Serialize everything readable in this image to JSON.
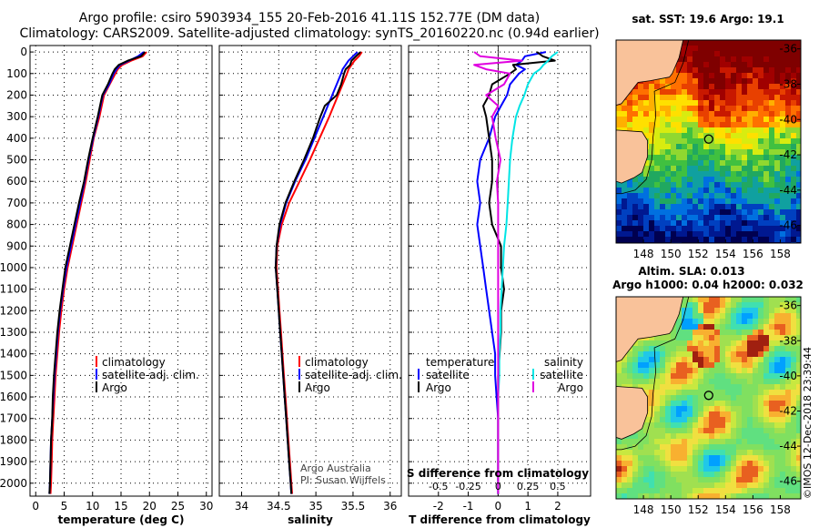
{
  "header": {
    "line1": "Argo profile: csiro 5903934_155 20-Feb-2016 41.11S 152.77E (DM data)",
    "line2": "Climatology: CARS2009. Satellite-adjusted climatology: synTS_20160220.nc (0.94d earlier)"
  },
  "colors": {
    "climatology": "#ff0000",
    "satellite": "#0000ff",
    "argo": "#000000",
    "sat_salinity": "#00e5e5",
    "argo_salinity": "#e000e0",
    "land": "#f9c29a"
  },
  "chart_data": [
    {
      "type": "line",
      "id": "temperature",
      "xlabel": "temperature (deg C)",
      "ylabel": "",
      "xlim": [
        -1,
        31
      ],
      "ylim": [
        2060,
        -30
      ],
      "xticks": [
        0,
        5,
        10,
        15,
        20,
        25,
        30
      ],
      "yticks": [
        0,
        100,
        200,
        300,
        400,
        500,
        600,
        700,
        800,
        900,
        1000,
        1100,
        1200,
        1300,
        1400,
        1500,
        1600,
        1700,
        1800,
        1900,
        2000
      ],
      "legend": [
        "climatology",
        "satellite-adj. clim.",
        "Argo"
      ],
      "depth": [
        0,
        20,
        40,
        60,
        80,
        100,
        150,
        200,
        250,
        300,
        400,
        500,
        600,
        700,
        800,
        900,
        1000,
        1100,
        1200,
        1300,
        1400,
        1500,
        1600,
        1700,
        1800,
        1900,
        2000,
        2050
      ],
      "series": [
        {
          "name": "climatology",
          "values": [
            19.5,
            18.8,
            16.8,
            15.2,
            14.4,
            14.0,
            13.0,
            12.0,
            11.6,
            11.2,
            10.2,
            9.5,
            8.8,
            8.0,
            7.2,
            6.4,
            5.6,
            5.0,
            4.5,
            4.1,
            3.8,
            3.5,
            3.3,
            3.1,
            2.9,
            2.8,
            2.7,
            2.6
          ]
        },
        {
          "name": "satellite-adj. clim.",
          "values": [
            19.0,
            18.0,
            16.4,
            14.8,
            14.2,
            13.7,
            12.9,
            11.8,
            11.4,
            11.0,
            10.1,
            9.3,
            8.6,
            7.8,
            7.0,
            6.2,
            5.4,
            4.8,
            4.3,
            3.9,
            3.6,
            3.3,
            3.1,
            2.9,
            2.7,
            2.6,
            2.5,
            2.4
          ]
        },
        {
          "name": "Argo",
          "values": [
            19.2,
            18.5,
            16.2,
            14.6,
            13.9,
            13.5,
            12.7,
            11.7,
            11.3,
            10.9,
            10.0,
            9.2,
            8.5,
            7.6,
            6.8,
            6.0,
            5.2,
            4.7,
            4.2,
            3.8,
            3.5,
            3.2,
            3.0,
            2.9,
            2.7,
            2.6,
            2.5,
            2.4
          ]
        }
      ]
    },
    {
      "type": "line",
      "id": "salinity",
      "xlabel": "salinity",
      "xlim": [
        33.7,
        36.15
      ],
      "ylim": [
        2060,
        -30
      ],
      "xticks": [
        34,
        34.5,
        35,
        35.5,
        36
      ],
      "legend": [
        "climatology",
        "satellite-adj. clim.",
        "Argo"
      ],
      "credit1": "Argo Australia",
      "credit2": "PI: Susan Wijffels",
      "depth": [
        0,
        20,
        40,
        60,
        80,
        100,
        150,
        200,
        250,
        300,
        400,
        500,
        600,
        700,
        800,
        900,
        1000,
        1100,
        1200,
        1300,
        1400,
        1500,
        1600,
        1700,
        1800,
        1900,
        2000,
        2050
      ],
      "series": [
        {
          "name": "climatology",
          "values": [
            35.62,
            35.58,
            35.52,
            35.48,
            35.44,
            35.42,
            35.36,
            35.3,
            35.24,
            35.18,
            35.05,
            34.92,
            34.78,
            34.64,
            34.54,
            34.48,
            34.47,
            34.49,
            34.51,
            34.53,
            34.55,
            34.57,
            34.59,
            34.61,
            34.63,
            34.65,
            34.67,
            34.68
          ]
        },
        {
          "name": "satellite-adj. clim.",
          "values": [
            35.56,
            35.5,
            35.44,
            35.4,
            35.36,
            35.34,
            35.28,
            35.22,
            35.16,
            35.1,
            34.98,
            34.86,
            34.72,
            34.6,
            34.52,
            34.47,
            34.46,
            34.48,
            34.5,
            34.52,
            34.54,
            34.56,
            34.58,
            34.6,
            34.62,
            34.64,
            34.66,
            34.67
          ]
        },
        {
          "name": "Argo",
          "values": [
            35.6,
            35.54,
            35.48,
            35.46,
            35.4,
            35.38,
            35.34,
            35.28,
            35.12,
            35.06,
            34.96,
            34.84,
            34.71,
            34.59,
            34.51,
            34.47,
            34.46,
            34.48,
            34.5,
            34.52,
            34.54,
            34.56,
            34.58,
            34.6,
            34.62,
            34.64,
            34.66,
            34.67
          ]
        }
      ]
    },
    {
      "type": "line",
      "id": "differences",
      "xlabel": "T difference from climatology",
      "top_label": "S difference from climatology",
      "xlim": [
        -3,
        3.1
      ],
      "ylim": [
        2060,
        -30
      ],
      "xticks": [
        -2,
        -1,
        0,
        1,
        2
      ],
      "top_ticks": [
        "-0.5",
        "-0.25",
        "0",
        "0.25",
        "0.5"
      ],
      "legend_t_title": "temperature",
      "legend_s_title": "salinity",
      "legend": [
        "satellite",
        "Argo"
      ],
      "depth": [
        0,
        20,
        40,
        60,
        80,
        100,
        150,
        200,
        250,
        300,
        400,
        500,
        600,
        700,
        800,
        900,
        1000,
        1100,
        1200,
        1300,
        1400,
        1500,
        1600,
        1700,
        1800,
        1900,
        2000,
        2050
      ],
      "series": [
        {
          "name": "T satellite",
          "values": [
            1.6,
            0.9,
            0.8,
            0.6,
            0.9,
            0.7,
            0.4,
            0.3,
            0.1,
            -0.1,
            -0.3,
            -0.6,
            -0.7,
            -0.6,
            -0.7,
            -0.6,
            -0.5,
            -0.4,
            -0.3,
            -0.2,
            -0.1,
            -0.1,
            -0.05,
            0,
            0,
            0,
            0,
            0
          ]
        },
        {
          "name": "T Argo",
          "values": [
            1.3,
            1.5,
            1.9,
            0.5,
            0.6,
            0.4,
            -0.2,
            -0.3,
            -0.5,
            -0.4,
            -0.3,
            -0.2,
            -0.2,
            -0.3,
            -0.2,
            0.1,
            0.1,
            0.2,
            0.1,
            0.1,
            0.05,
            0,
            0,
            0,
            0,
            0,
            0,
            0
          ]
        },
        {
          "name": "S satellite",
          "values": [
            0.5,
            0.45,
            0.42,
            0.38,
            0.35,
            0.3,
            0.25,
            0.22,
            0.18,
            0.15,
            0.12,
            0.1,
            0.09,
            0.08,
            0.07,
            0.05,
            0.04,
            0.03,
            0.02,
            0.02,
            0.01,
            0.01,
            0,
            0,
            0,
            0,
            0,
            0
          ]
        },
        {
          "name": "S Argo",
          "values": [
            -0.2,
            -0.15,
            0.2,
            -0.2,
            -0.1,
            0.1,
            0.05,
            -0.1,
            0,
            -0.05,
            -0.02,
            0.02,
            -0.01,
            0,
            0,
            0,
            0,
            0,
            0,
            0,
            0,
            0,
            0,
            0,
            0,
            0,
            0,
            0
          ]
        }
      ]
    },
    {
      "type": "heatmap",
      "id": "sst-map",
      "title": "sat. SST: 19.6 Argo: 19.1",
      "xticks": [
        148,
        150,
        152,
        154,
        156,
        158
      ],
      "yticks": [
        -36,
        -38,
        -40,
        -42,
        -44,
        -46
      ],
      "xlim": [
        146,
        159.5
      ],
      "ylim": [
        -47,
        -35.5
      ],
      "argo_position": [
        152.77,
        -41.11
      ]
    },
    {
      "type": "heatmap",
      "id": "sla-map",
      "title1": "Altim. SLA: 0.013",
      "title2": "Argo h1000: 0.04 h2000: 0.032",
      "xticks": [
        148,
        150,
        152,
        154,
        156,
        158
      ],
      "yticks": [
        -36,
        -38,
        -40,
        -42,
        -44,
        -46
      ],
      "xlim": [
        146,
        159.5
      ],
      "ylim": [
        -47,
        -35.5
      ],
      "argo_position": [
        152.77,
        -41.11
      ]
    }
  ],
  "footer": {
    "credit": "©IMOS 12-Dec-2018 23:39:44"
  }
}
